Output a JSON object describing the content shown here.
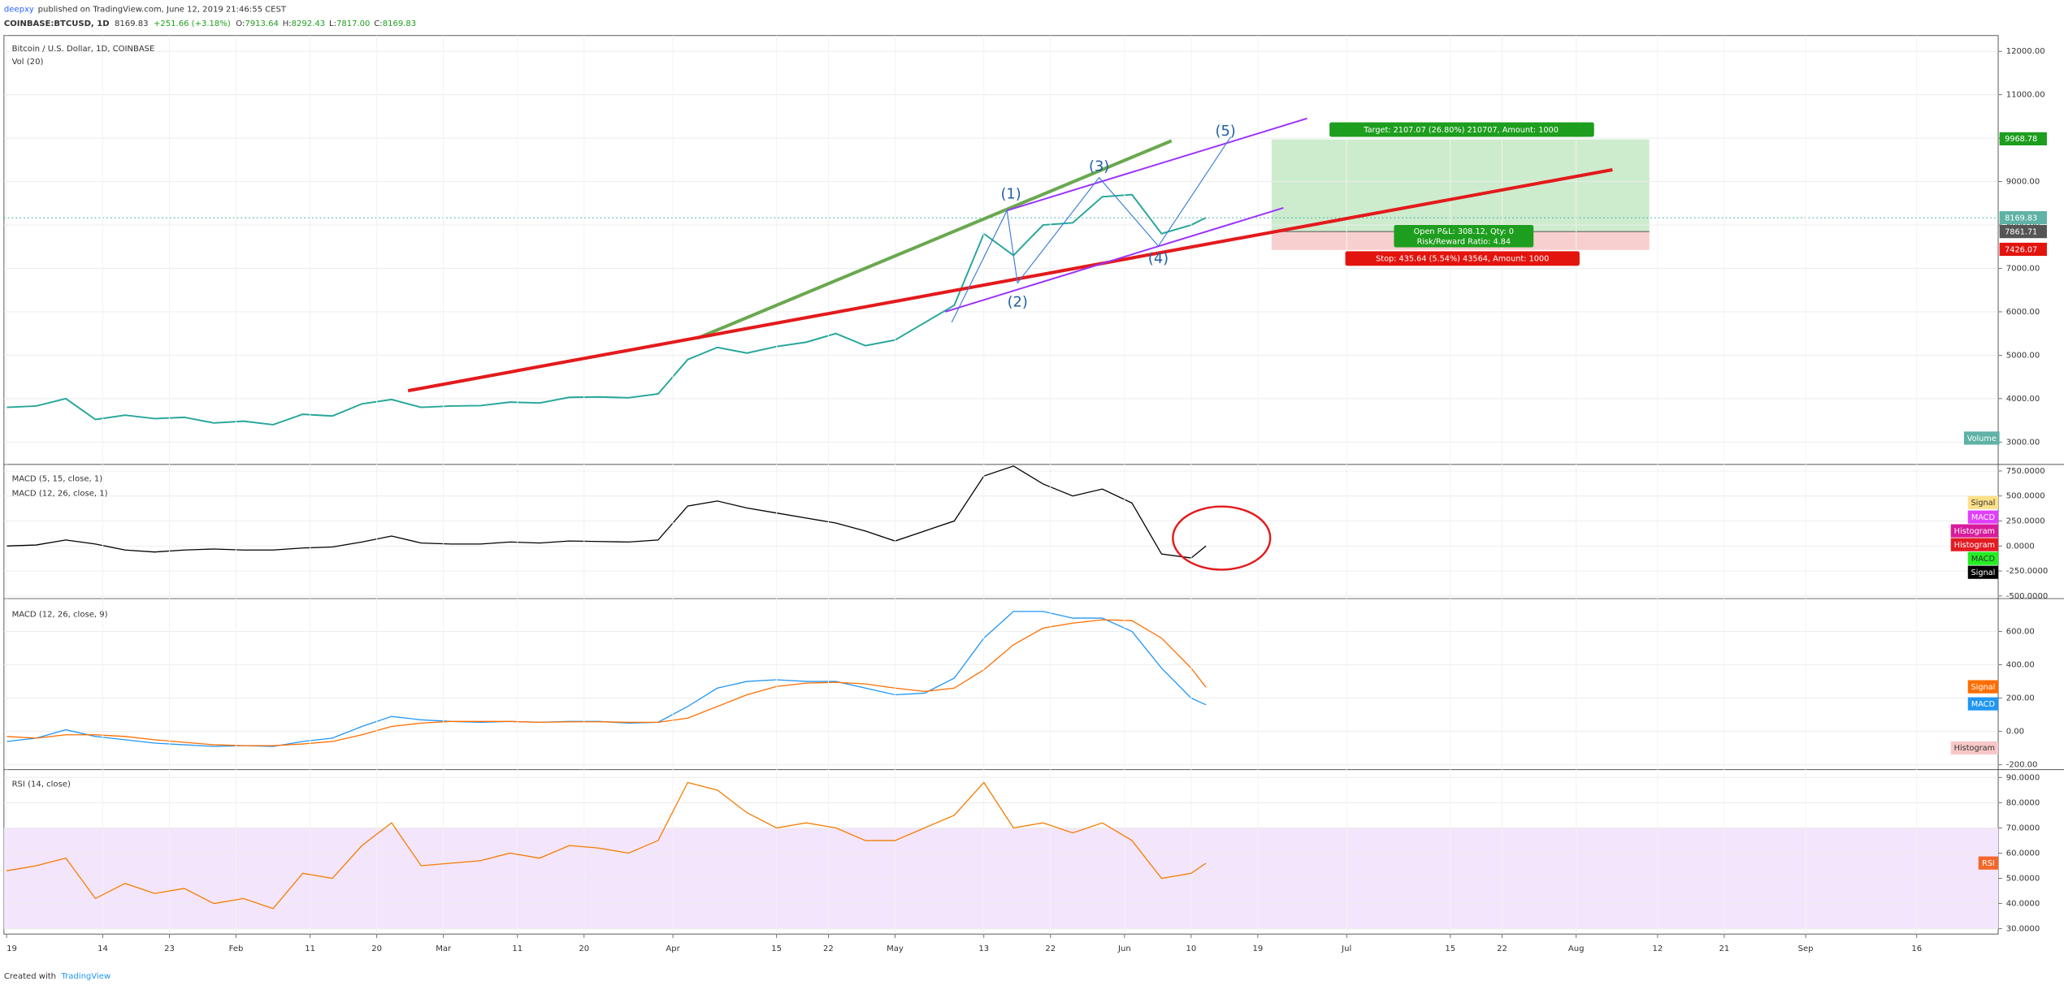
{
  "header": {
    "author": "deepxy",
    "published": "published on TradingView.com, June 12, 2019 21:46:55 CEST",
    "symbol": "COINBASE:BTCUSD, 1D",
    "last": "8169.83",
    "change": "+251.66 (+3.18%)",
    "ohlc": [
      {
        "label": "O:",
        "value": "7913.64"
      },
      {
        "label": "H:",
        "value": "8292.43"
      },
      {
        "label": "L:",
        "value": "7817.00"
      },
      {
        "label": "C:",
        "value": "8169.83"
      }
    ]
  },
  "price_labels": {
    "target_price": "9968.78",
    "last_price": "8169.83",
    "entry_price": "7861.71",
    "stop_price": "7426.07",
    "volume": "Volume"
  },
  "trade": {
    "target": "Target: 2107.07 (26.80%) 210707, Amount: 1000",
    "pnl": "Open P&L: 308.12, Qty: 0",
    "risk_reward": "Risk/Reward Ratio: 4.84",
    "stop": "Stop: 435.64 (5.54%) 43564, Amount: 1000"
  },
  "waves": [
    "(1)",
    "(2)",
    "(3)",
    "(4)",
    "(5)"
  ],
  "panel_legends": {
    "macd_fast": [
      "Signal",
      "MACD",
      "Histogram",
      "Histogram",
      "MACD",
      "Signal"
    ],
    "macd": [
      "Signal",
      "MACD",
      "Histogram"
    ],
    "rsi": "RSI"
  },
  "footer": {
    "created": "Created with",
    "brand": "TradingView"
  },
  "chart_data": [
    {
      "type": "line",
      "title": "Bitcoin / U.S. Dollar, 1D, COINBASE",
      "subtitle": "Vol (20)",
      "x": [
        "01-01",
        "01-05",
        "01-09",
        "01-13",
        "01-17",
        "01-21",
        "01-25",
        "01-29",
        "02-02",
        "02-06",
        "02-10",
        "02-14",
        "02-18",
        "02-22",
        "02-26",
        "03-02",
        "03-06",
        "03-10",
        "03-14",
        "03-18",
        "03-22",
        "03-26",
        "03-30",
        "04-03",
        "04-07",
        "04-11",
        "04-15",
        "04-19",
        "04-23",
        "04-27",
        "05-01",
        "05-05",
        "05-09",
        "05-13",
        "05-17",
        "05-21",
        "05-25",
        "05-29",
        "06-02",
        "06-06",
        "06-10",
        "06-12"
      ],
      "series": [
        {
          "name": "Bitcoin / U.S. Dollar",
          "color": "#26a69a",
          "values": [
            3800,
            3830,
            4000,
            3520,
            3620,
            3540,
            3570,
            3440,
            3480,
            3400,
            3640,
            3600,
            3880,
            3980,
            3800,
            3830,
            3840,
            3920,
            3900,
            4030,
            4040,
            4020,
            4110,
            4900,
            5180,
            5050,
            5200,
            5300,
            5500,
            5220,
            5350,
            5750,
            6150,
            7800,
            7300,
            8000,
            8050,
            8650,
            8700,
            7800,
            8000,
            8170
          ]
        }
      ],
      "xlim": [
        "01-01",
        "09-27"
      ],
      "ylim": [
        2485,
        12364
      ],
      "yticks": [
        {
          "value": 12000,
          "label": "12000.00"
        },
        {
          "value": 11000,
          "label": "11000.00"
        },
        {
          "value": 10000,
          "label": "10000.00"
        },
        {
          "value": 9000,
          "label": "9000.00"
        },
        {
          "value": 8000,
          "label": "8000.00"
        },
        {
          "value": 7000,
          "label": "7000.00"
        },
        {
          "value": 6000,
          "label": "6000.00"
        },
        {
          "value": 5000,
          "label": "5000.00"
        },
        {
          "value": 4000,
          "label": "4000.00"
        },
        {
          "value": 3000,
          "label": "3000.00"
        }
      ],
      "grid": true
    },
    {
      "type": "line",
      "title": "MACD (5, 15, close, 1)",
      "subtitle": "MACD (12, 26, close, 1)",
      "x": [
        "01-01",
        "01-05",
        "01-09",
        "01-13",
        "01-17",
        "01-21",
        "01-25",
        "01-29",
        "02-02",
        "02-06",
        "02-10",
        "02-14",
        "02-18",
        "02-22",
        "02-26",
        "03-02",
        "03-06",
        "03-10",
        "03-14",
        "03-18",
        "03-22",
        "03-26",
        "03-30",
        "04-03",
        "04-07",
        "04-11",
        "04-15",
        "04-19",
        "04-23",
        "04-27",
        "05-01",
        "05-05",
        "05-09",
        "05-13",
        "05-17",
        "05-21",
        "05-25",
        "05-29",
        "06-02",
        "06-06",
        "06-10",
        "06-12"
      ],
      "series": [
        {
          "name": "MACD",
          "color": "#000000",
          "values": [
            0,
            10,
            60,
            20,
            -40,
            -60,
            -40,
            -30,
            -40,
            -40,
            -20,
            -10,
            40,
            100,
            30,
            20,
            20,
            40,
            30,
            50,
            45,
            40,
            60,
            400,
            450,
            380,
            330,
            280,
            230,
            150,
            50,
            150,
            250,
            700,
            800,
            620,
            500,
            570,
            430,
            -80,
            -120,
            0
          ]
        }
      ],
      "xlim": [
        "01-01",
        "09-27"
      ],
      "ylim": [
        -526,
        816
      ],
      "yticks": [
        {
          "value": 750,
          "label": "750.0000"
        },
        {
          "value": 500,
          "label": "500.0000"
        },
        {
          "value": 250,
          "label": "250.0000"
        },
        {
          "value": 0,
          "label": "0.0000"
        },
        {
          "value": -250,
          "label": "-250.0000"
        },
        {
          "value": -500,
          "label": "-500.0000"
        }
      ],
      "grid": true
    },
    {
      "type": "line",
      "title": "MACD (12, 26, close, 9)",
      "x": [
        "01-01",
        "01-05",
        "01-09",
        "01-13",
        "01-17",
        "01-21",
        "01-25",
        "01-29",
        "02-02",
        "02-06",
        "02-10",
        "02-14",
        "02-18",
        "02-22",
        "02-26",
        "03-02",
        "03-06",
        "03-10",
        "03-14",
        "03-18",
        "03-22",
        "03-26",
        "03-30",
        "04-03",
        "04-07",
        "04-11",
        "04-15",
        "04-19",
        "04-23",
        "04-27",
        "05-01",
        "05-05",
        "05-09",
        "05-13",
        "05-17",
        "05-21",
        "05-25",
        "05-29",
        "06-02",
        "06-06",
        "06-10",
        "06-12"
      ],
      "series": [
        {
          "name": "MACD",
          "color": "#2196f3",
          "values": [
            -60,
            -40,
            10,
            -30,
            -50,
            -70,
            -80,
            -90,
            -85,
            -90,
            -60,
            -40,
            30,
            90,
            70,
            60,
            55,
            60,
            55,
            60,
            60,
            50,
            55,
            150,
            260,
            300,
            310,
            300,
            300,
            260,
            220,
            230,
            320,
            560,
            720,
            720,
            680,
            680,
            600,
            380,
            200,
            160
          ]
        },
        {
          "name": "Signal",
          "color": "#ff6d00",
          "values": [
            -30,
            -40,
            -20,
            -20,
            -30,
            -50,
            -65,
            -80,
            -85,
            -85,
            -75,
            -60,
            -20,
            30,
            50,
            60,
            60,
            60,
            55,
            58,
            58,
            55,
            55,
            80,
            150,
            220,
            270,
            290,
            295,
            285,
            260,
            240,
            260,
            370,
            520,
            620,
            650,
            670,
            665,
            560,
            380,
            265
          ]
        }
      ],
      "xlim": [
        "01-01",
        "09-27"
      ],
      "ylim": [
        -229,
        797
      ],
      "yticks": [
        {
          "value": 600,
          "label": "600.00"
        },
        {
          "value": 400,
          "label": "400.00"
        },
        {
          "value": 200,
          "label": "200.00"
        },
        {
          "value": 0,
          "label": "0.00"
        },
        {
          "value": -200,
          "label": "-200.00"
        }
      ],
      "grid": true
    },
    {
      "type": "line",
      "title": "RSI (14, close)",
      "x": [
        "01-01",
        "01-05",
        "01-09",
        "01-13",
        "01-17",
        "01-21",
        "01-25",
        "01-29",
        "02-02",
        "02-06",
        "02-10",
        "02-14",
        "02-18",
        "02-22",
        "02-26",
        "03-02",
        "03-06",
        "03-10",
        "03-14",
        "03-18",
        "03-22",
        "03-26",
        "03-30",
        "04-03",
        "04-07",
        "04-11",
        "04-15",
        "04-19",
        "04-23",
        "04-27",
        "05-01",
        "05-05",
        "05-09",
        "05-13",
        "05-17",
        "05-21",
        "05-25",
        "05-29",
        "06-02",
        "06-06",
        "06-10",
        "06-12"
      ],
      "series": [
        {
          "name": "RSI",
          "color": "#f57c00",
          "values": [
            53,
            55,
            58,
            42,
            48,
            44,
            46,
            40,
            42,
            38,
            52,
            50,
            63,
            72,
            55,
            56,
            57,
            60,
            58,
            63,
            62,
            60,
            65,
            88,
            85,
            76,
            70,
            72,
            70,
            65,
            65,
            70,
            75,
            88,
            70,
            72,
            68,
            72,
            65,
            50,
            52,
            56
          ]
        }
      ],
      "xlim": [
        "01-01",
        "09-27"
      ],
      "ylim": [
        27.9,
        93.1
      ],
      "band": [
        30,
        70
      ],
      "yticks": [
        {
          "value": 90,
          "label": "90.0000"
        },
        {
          "value": 80,
          "label": "80.0000"
        },
        {
          "value": 70,
          "label": "70.0000"
        },
        {
          "value": 60,
          "label": "60.0000"
        },
        {
          "value": 50,
          "label": "50.0000"
        },
        {
          "value": 40,
          "label": "40.0000"
        },
        {
          "value": 30,
          "label": "30.0000"
        }
      ],
      "xticks": [
        {
          "value": "01-01",
          "label": "19"
        },
        {
          "value": "01-14",
          "label": "14"
        },
        {
          "value": "01-23",
          "label": "23"
        },
        {
          "value": "02-01",
          "label": "Feb"
        },
        {
          "value": "02-11",
          "label": "11"
        },
        {
          "value": "02-20",
          "label": "20"
        },
        {
          "value": "03-01",
          "label": "Mar"
        },
        {
          "value": "03-11",
          "label": "11"
        },
        {
          "value": "03-20",
          "label": "20"
        },
        {
          "value": "04-01",
          "label": "Apr"
        },
        {
          "value": "04-15",
          "label": "15"
        },
        {
          "value": "04-22",
          "label": "22"
        },
        {
          "value": "05-01",
          "label": "May"
        },
        {
          "value": "05-13",
          "label": "13"
        },
        {
          "value": "05-22",
          "label": "22"
        },
        {
          "value": "06-01",
          "label": "Jun"
        },
        {
          "value": "06-10",
          "label": "10"
        },
        {
          "value": "06-19",
          "label": "19"
        },
        {
          "value": "07-01",
          "label": "Jul"
        },
        {
          "value": "07-15",
          "label": "15"
        },
        {
          "value": "07-22",
          "label": "22"
        },
        {
          "value": "08-01",
          "label": "Aug"
        },
        {
          "value": "08-12",
          "label": "12"
        },
        {
          "value": "08-21",
          "label": "21"
        },
        {
          "value": "09-01",
          "label": "Sep"
        },
        {
          "value": "09-16",
          "label": "16"
        }
      ],
      "grid": true
    }
  ]
}
